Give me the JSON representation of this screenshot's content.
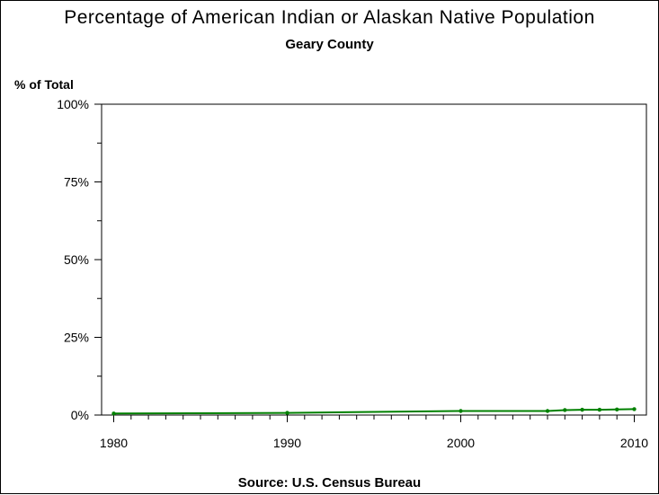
{
  "chart_data": {
    "type": "line",
    "title": "Percentage of American Indian or Alaskan Native Population",
    "subtitle": "Geary County",
    "ylabel": "% of Total",
    "xlabel": "",
    "footer": "Source: U.S. Census Bureau",
    "xlim": [
      1979.3,
      2010.7
    ],
    "ylim": [
      0,
      100
    ],
    "x_ticks": [
      1980,
      1990,
      2000,
      2010
    ],
    "x_tick_labels": [
      "1980",
      "1990",
      "2000",
      "2010"
    ],
    "y_ticks": [
      0,
      25,
      50,
      75,
      100
    ],
    "y_tick_labels": [
      "0%",
      "25%",
      "50%",
      "75%",
      "100%"
    ],
    "grid": false,
    "line_color": "#008000",
    "series": [
      {
        "x": [
          1980,
          1990,
          2000,
          2005,
          2006,
          2007,
          2008,
          2009,
          2010
        ],
        "values": [
          0.5,
          0.7,
          1.3,
          1.3,
          1.6,
          1.7,
          1.7,
          1.8,
          1.9
        ]
      }
    ]
  }
}
